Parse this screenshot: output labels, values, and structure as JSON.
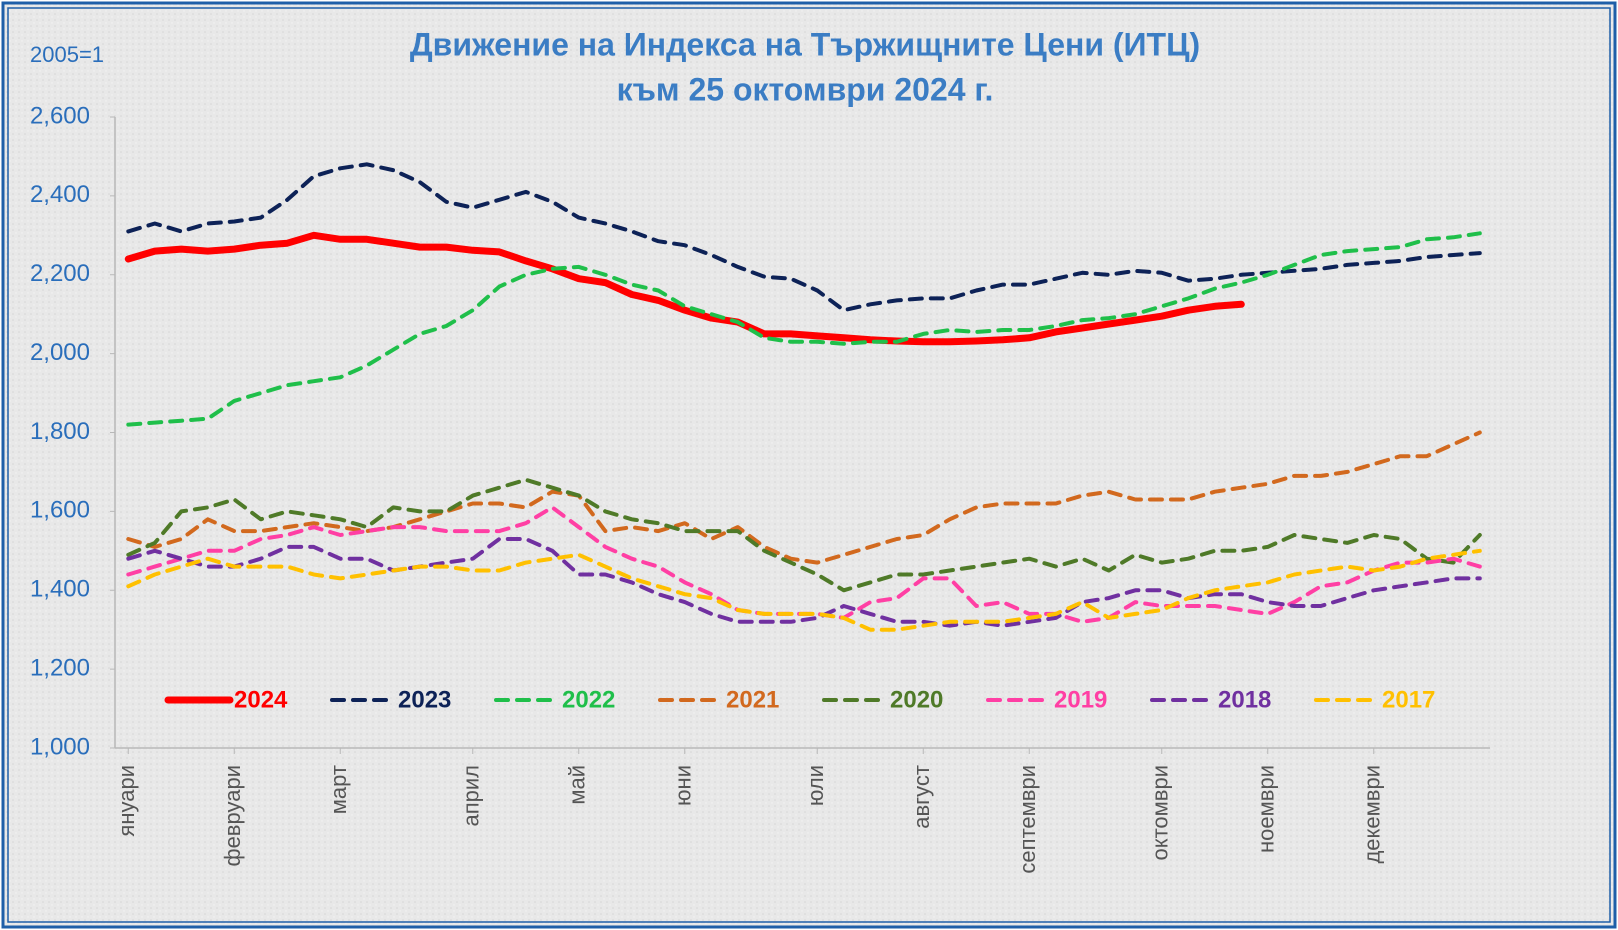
{
  "chart_data": {
    "type": "line",
    "title": "Движение на Индекса на Тържищните Цени (ИТЦ)",
    "subtitle": "към 25 октомври 2024 г.",
    "ylabel": "2005=1",
    "x": [
      1,
      2,
      3,
      4,
      5,
      6,
      7,
      8,
      9,
      10,
      11,
      12,
      13,
      14,
      15,
      16,
      17,
      18,
      19,
      20,
      21,
      22,
      23,
      24,
      25,
      26,
      27,
      28,
      29,
      30,
      31,
      32,
      33,
      34,
      35,
      36,
      37,
      38,
      39,
      40,
      41,
      42,
      43,
      44,
      45,
      46,
      47,
      48,
      49,
      50,
      51,
      52
    ],
    "xlim": [
      0.5,
      52.5
    ],
    "xticks": [
      {
        "value": 1,
        "label": "януари"
      },
      {
        "value": 5,
        "label": "февруари"
      },
      {
        "value": 9,
        "label": "март"
      },
      {
        "value": 14,
        "label": "април"
      },
      {
        "value": 18,
        "label": "май"
      },
      {
        "value": 22,
        "label": "юни"
      },
      {
        "value": 27,
        "label": "юли"
      },
      {
        "value": 31,
        "label": "август"
      },
      {
        "value": 35,
        "label": "септември"
      },
      {
        "value": 40,
        "label": "октомври"
      },
      {
        "value": 44,
        "label": "ноември"
      },
      {
        "value": 48,
        "label": "декември"
      }
    ],
    "ylim": [
      1000,
      2600
    ],
    "yticks": [
      {
        "value": 1000,
        "label": "1,000"
      },
      {
        "value": 1200,
        "label": "1,200"
      },
      {
        "value": 1400,
        "label": "1,400"
      },
      {
        "value": 1600,
        "label": "1,600"
      },
      {
        "value": 1800,
        "label": "1,800"
      },
      {
        "value": 2000,
        "label": "2,000"
      },
      {
        "value": 2200,
        "label": "2,200"
      },
      {
        "value": 2400,
        "label": "2,400"
      },
      {
        "value": 2600,
        "label": "2,600"
      }
    ],
    "grid": false,
    "legend": "bottom",
    "series": [
      {
        "name": "2024",
        "color": "#ff0000",
        "line_style": "solid",
        "values": [
          2240,
          2260,
          2265,
          2260,
          2265,
          2275,
          2280,
          2300,
          2290,
          2290,
          2280,
          2270,
          2270,
          2262,
          2258,
          2235,
          2215,
          2190,
          2180,
          2150,
          2135,
          2110,
          2090,
          2080,
          2050,
          2050,
          2045,
          2040,
          2035,
          2032,
          2030,
          2030,
          2032,
          2035,
          2040,
          2055,
          2065,
          2075,
          2085,
          2095,
          2110,
          2120,
          2125,
          null,
          null,
          null,
          null,
          null,
          null,
          null,
          null,
          null
        ]
      },
      {
        "name": "2023",
        "color": "#0d2257",
        "line_style": "dashed",
        "values": [
          2310,
          2330,
          2310,
          2330,
          2335,
          2345,
          2390,
          2450,
          2470,
          2480,
          2465,
          2435,
          2385,
          2370,
          2390,
          2410,
          2385,
          2345,
          2330,
          2310,
          2285,
          2275,
          2250,
          2220,
          2195,
          2190,
          2160,
          2110,
          2125,
          2135,
          2140,
          2140,
          2160,
          2175,
          2175,
          2190,
          2205,
          2200,
          2210,
          2205,
          2185,
          2190,
          2200,
          2205,
          2210,
          2215,
          2225,
          2230,
          2235,
          2245,
          2250,
          2255
        ]
      },
      {
        "name": "2022",
        "color": "#1fbf4a",
        "line_style": "dashed",
        "values": [
          1820,
          1825,
          1830,
          1835,
          1880,
          1900,
          1920,
          1930,
          1940,
          1970,
          2010,
          2050,
          2070,
          2110,
          2170,
          2200,
          2215,
          2220,
          2200,
          2175,
          2160,
          2120,
          2100,
          2080,
          2040,
          2030,
          2030,
          2025,
          2030,
          2030,
          2050,
          2060,
          2055,
          2060,
          2060,
          2070,
          2085,
          2090,
          2100,
          2120,
          2140,
          2165,
          2180,
          2200,
          2225,
          2250,
          2260,
          2265,
          2270,
          2290,
          2295,
          2305
        ]
      },
      {
        "name": "2021",
        "color": "#d2691e",
        "line_style": "dashed",
        "values": [
          1530,
          1510,
          1530,
          1580,
          1550,
          1550,
          1560,
          1570,
          1560,
          1550,
          1560,
          1580,
          1600,
          1620,
          1620,
          1610,
          1650,
          1640,
          1550,
          1560,
          1550,
          1570,
          1530,
          1560,
          1510,
          1480,
          1470,
          1490,
          1510,
          1530,
          1540,
          1580,
          1610,
          1620,
          1620,
          1620,
          1640,
          1650,
          1630,
          1630,
          1630,
          1650,
          1660,
          1670,
          1690,
          1690,
          1700,
          1720,
          1740,
          1740,
          1770,
          1800
        ]
      },
      {
        "name": "2020",
        "color": "#4f7a28",
        "line_style": "dashed",
        "values": [
          1490,
          1520,
          1600,
          1610,
          1630,
          1580,
          1600,
          1590,
          1580,
          1560,
          1610,
          1600,
          1600,
          1640,
          1660,
          1680,
          1660,
          1640,
          1600,
          1580,
          1570,
          1550,
          1550,
          1550,
          1500,
          1470,
          1440,
          1400,
          1420,
          1440,
          1440,
          1450,
          1460,
          1470,
          1480,
          1460,
          1480,
          1450,
          1490,
          1470,
          1480,
          1500,
          1500,
          1510,
          1540,
          1530,
          1520,
          1540,
          1530,
          1480,
          1470,
          1540
        ]
      },
      {
        "name": "2019",
        "color": "#ff3fa4",
        "line_style": "dashed",
        "values": [
          1440,
          1460,
          1480,
          1500,
          1500,
          1530,
          1540,
          1560,
          1540,
          1550,
          1560,
          1560,
          1550,
          1550,
          1550,
          1570,
          1610,
          1560,
          1510,
          1480,
          1460,
          1420,
          1390,
          1350,
          1340,
          1340,
          1340,
          1330,
          1370,
          1380,
          1430,
          1430,
          1360,
          1370,
          1340,
          1340,
          1320,
          1330,
          1370,
          1360,
          1360,
          1360,
          1350,
          1340,
          1370,
          1410,
          1420,
          1450,
          1470,
          1470,
          1480,
          1460
        ]
      },
      {
        "name": "2018",
        "color": "#7030a0",
        "line_style": "dashed",
        "values": [
          1480,
          1500,
          1480,
          1460,
          1460,
          1480,
          1510,
          1510,
          1480,
          1480,
          1450,
          1460,
          1470,
          1480,
          1530,
          1530,
          1500,
          1440,
          1440,
          1420,
          1390,
          1370,
          1340,
          1320,
          1320,
          1320,
          1330,
          1360,
          1340,
          1320,
          1320,
          1310,
          1320,
          1310,
          1320,
          1330,
          1370,
          1380,
          1400,
          1400,
          1380,
          1390,
          1390,
          1370,
          1360,
          1360,
          1380,
          1400,
          1410,
          1420,
          1430,
          1430
        ]
      },
      {
        "name": "2017",
        "color": "#ffc000",
        "line_style": "dashed",
        "values": [
          1410,
          1440,
          1460,
          1480,
          1460,
          1460,
          1460,
          1440,
          1430,
          1440,
          1450,
          1460,
          1460,
          1450,
          1450,
          1470,
          1480,
          1490,
          1460,
          1430,
          1410,
          1390,
          1380,
          1350,
          1340,
          1340,
          1340,
          1330,
          1300,
          1300,
          1310,
          1320,
          1320,
          1320,
          1330,
          1340,
          1370,
          1330,
          1340,
          1350,
          1380,
          1400,
          1410,
          1420,
          1440,
          1450,
          1460,
          1450,
          1460,
          1480,
          1490,
          1500
        ]
      }
    ]
  }
}
